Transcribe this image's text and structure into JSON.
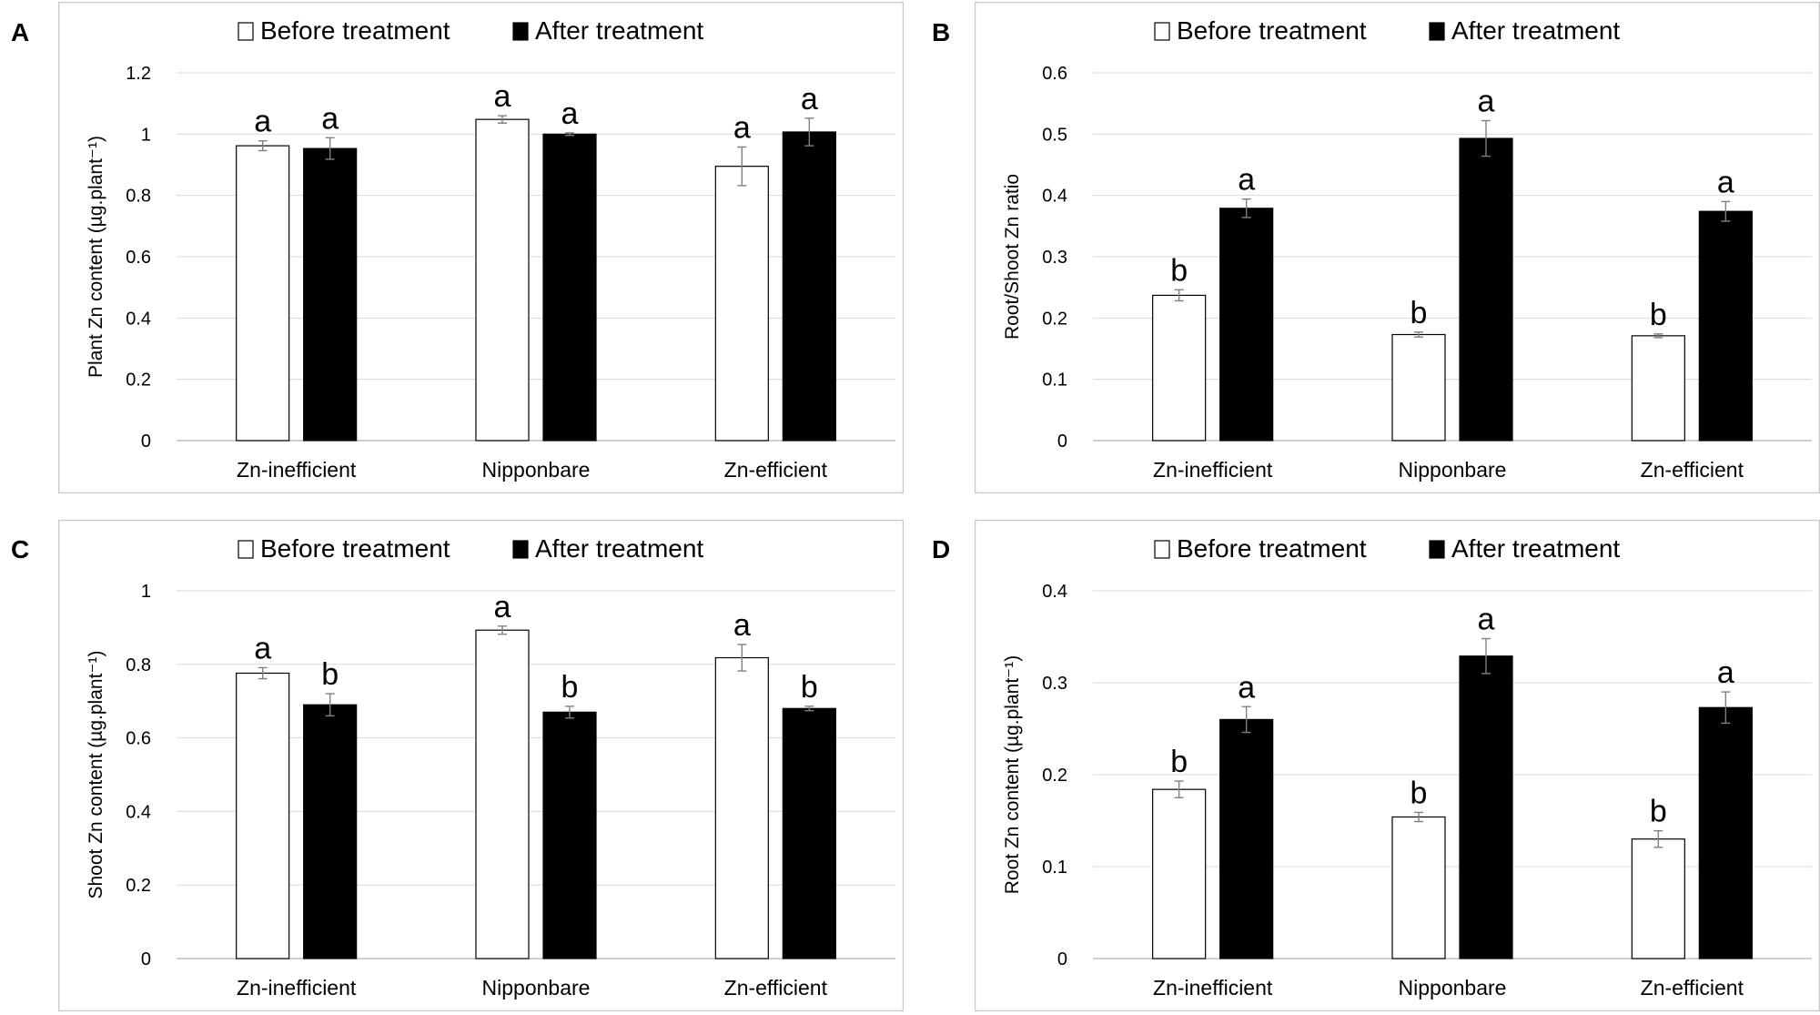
{
  "legend": {
    "before_label": "Before treatment",
    "after_label": "After treatment"
  },
  "colors": {
    "before_fill": "#ffffff",
    "after_fill": "#000000",
    "frame": "#c8c8c8",
    "grid": "#d9d9d9",
    "axis": "#bfbfbf",
    "error_bar": "#808080"
  },
  "chart_data": [
    {
      "panel": "A",
      "type": "bar",
      "ylabel": "Plant Zn content (µg.plant⁻¹)",
      "ylim": [
        0,
        1.2
      ],
      "yticks": [
        0,
        0.2,
        0.4,
        0.6,
        0.8,
        1,
        1.2
      ],
      "ytick_labels": [
        "0",
        "0.2",
        "0.4",
        "0.6",
        "0.8",
        "1",
        "1.2"
      ],
      "categories": [
        "Zn-inefficient",
        "Nipponbare",
        "Zn-efficient"
      ],
      "series": [
        {
          "name": "Before treatment",
          "values": [
            0.962,
            1.048,
            0.895
          ],
          "errors": [
            0.016,
            0.012,
            0.063
          ],
          "letters": [
            "a",
            "a",
            "a"
          ]
        },
        {
          "name": "After treatment",
          "values": [
            0.953,
            1.0,
            1.007
          ],
          "errors": [
            0.035,
            0.004,
            0.045
          ],
          "letters": [
            "a",
            "a",
            "a"
          ]
        }
      ]
    },
    {
      "panel": "B",
      "type": "bar",
      "ylabel": "Root/Shoot Zn ratio",
      "ylim": [
        0,
        0.6
      ],
      "yticks": [
        0,
        0.1,
        0.2,
        0.3,
        0.4,
        0.5,
        0.6
      ],
      "ytick_labels": [
        "0",
        "0.1",
        "0.2",
        "0.3",
        "0.4",
        "0.5",
        "0.6"
      ],
      "categories": [
        "Zn-inefficient",
        "Nipponbare",
        "Zn-efficient"
      ],
      "series": [
        {
          "name": "Before treatment",
          "values": [
            0.237,
            0.173,
            0.171
          ],
          "errors": [
            0.009,
            0.004,
            0.003
          ],
          "letters": [
            "b",
            "b",
            "b"
          ]
        },
        {
          "name": "After treatment",
          "values": [
            0.379,
            0.493,
            0.374
          ],
          "errors": [
            0.015,
            0.029,
            0.016
          ],
          "letters": [
            "a",
            "a",
            "a"
          ]
        }
      ]
    },
    {
      "panel": "C",
      "type": "bar",
      "ylabel": "Shoot Zn content (µg.plant⁻¹)",
      "ylim": [
        0,
        1.0
      ],
      "yticks": [
        0,
        0.2,
        0.4,
        0.6,
        0.8,
        1
      ],
      "ytick_labels": [
        "0",
        "0.2",
        "0.4",
        "0.6",
        "0.8",
        "1"
      ],
      "categories": [
        "Zn-inefficient",
        "Nipponbare",
        "Zn-efficient"
      ],
      "series": [
        {
          "name": "Before treatment",
          "values": [
            0.776,
            0.893,
            0.818
          ],
          "errors": [
            0.015,
            0.011,
            0.036
          ],
          "letters": [
            "a",
            "a",
            "a"
          ]
        },
        {
          "name": "After treatment",
          "values": [
            0.69,
            0.67,
            0.68
          ],
          "errors": [
            0.03,
            0.016,
            0.006
          ],
          "letters": [
            "b",
            "b",
            "b"
          ]
        }
      ]
    },
    {
      "panel": "D",
      "type": "bar",
      "ylabel": "Root Zn content (µg.plant⁻¹)",
      "ylim": [
        0,
        0.4
      ],
      "yticks": [
        0,
        0.1,
        0.2,
        0.3,
        0.4
      ],
      "ytick_labels": [
        "0",
        "0.1",
        "0.2",
        "0.3",
        "0.4"
      ],
      "categories": [
        "Zn-inefficient",
        "Nipponbare",
        "Zn-efficient"
      ],
      "series": [
        {
          "name": "Before treatment",
          "values": [
            0.184,
            0.154,
            0.13
          ],
          "errors": [
            0.009,
            0.005,
            0.009
          ],
          "letters": [
            "b",
            "b",
            "b"
          ]
        },
        {
          "name": "After treatment",
          "values": [
            0.26,
            0.329,
            0.273
          ],
          "errors": [
            0.014,
            0.019,
            0.017
          ],
          "letters": [
            "a",
            "a",
            "a"
          ]
        }
      ]
    }
  ]
}
